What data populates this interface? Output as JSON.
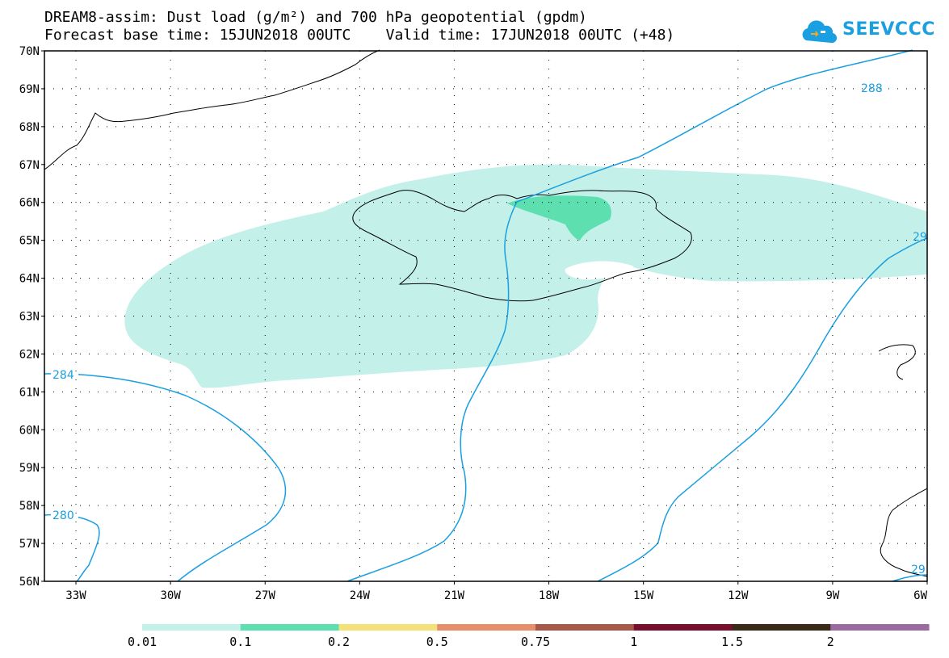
{
  "title": {
    "line1": "DREAM8-assim: Dust load (g/m²) and 700 hPa geopotential (gpdm)",
    "line2": "Forecast base time: 15JUN2018 00UTC    Valid time: 17JUN2018 00UTC (+48)"
  },
  "logo": {
    "text": "SEEVCCC",
    "icon": "cloud-icon",
    "color": "#1a9fe0"
  },
  "map": {
    "lon_range": [
      -34,
      -6
    ],
    "lat_range": [
      56,
      70
    ],
    "lat_labels": [
      "56N",
      "57N",
      "58N",
      "59N",
      "60N",
      "61N",
      "62N",
      "63N",
      "64N",
      "65N",
      "66N",
      "67N",
      "68N",
      "69N",
      "70N"
    ],
    "lon_labels": [
      "33W",
      "30W",
      "27W",
      "24W",
      "21W",
      "18W",
      "15W",
      "12W",
      "9W",
      "6W"
    ],
    "grid": "dotted",
    "contour_color": "#1a9fe0",
    "contour_labels": [
      "288",
      "284",
      "280",
      "29",
      "29"
    ]
  },
  "colorbar": {
    "labels": [
      "0.01",
      "0.1",
      "0.2",
      "0.5",
      "0.75",
      "1",
      "1.5",
      "2"
    ],
    "colors": [
      "#c4f0ea",
      "#5ddfb0",
      "#f5e17a",
      "#e88e6a",
      "#a85848",
      "#7a0e2e",
      "#3a2a18",
      "#9a6aa0"
    ]
  }
}
